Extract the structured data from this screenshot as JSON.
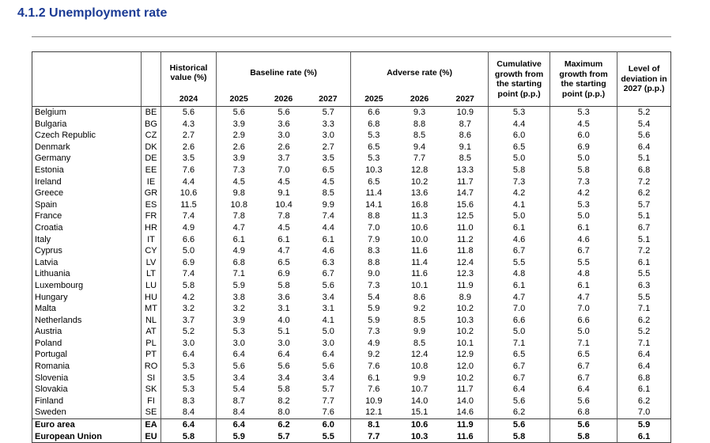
{
  "page": {
    "title": "4.1.2 Unemployment rate"
  },
  "table": {
    "group_headers": {
      "historical": "Historical value (%)",
      "baseline": "Baseline rate (%)",
      "adverse": "Adverse rate (%)",
      "cumulative": "Cumulative growth from the starting point (p.p.)",
      "maximum": "Maximum growth from the starting point (p.p.)",
      "level": "Level of deviation in 2027 (p.p.)"
    },
    "years": {
      "historical": "2024",
      "baseline": [
        "2025",
        "2026",
        "2027"
      ],
      "adverse": [
        "2025",
        "2026",
        "2027"
      ]
    },
    "rows": [
      {
        "name": "Belgium",
        "code": "BE",
        "values": [
          "5.6",
          "5.6",
          "5.6",
          "5.7",
          "6.6",
          "9.3",
          "10.9",
          "5.3",
          "5.3",
          "5.2"
        ]
      },
      {
        "name": "Bulgaria",
        "code": "BG",
        "values": [
          "4.3",
          "3.9",
          "3.6",
          "3.3",
          "6.8",
          "8.8",
          "8.7",
          "4.4",
          "4.5",
          "5.4"
        ]
      },
      {
        "name": "Czech Republic",
        "code": "CZ",
        "values": [
          "2.7",
          "2.9",
          "3.0",
          "3.0",
          "5.3",
          "8.5",
          "8.6",
          "6.0",
          "6.0",
          "5.6"
        ]
      },
      {
        "name": "Denmark",
        "code": "DK",
        "values": [
          "2.6",
          "2.6",
          "2.6",
          "2.7",
          "6.5",
          "9.4",
          "9.1",
          "6.5",
          "6.9",
          "6.4"
        ]
      },
      {
        "name": "Germany",
        "code": "DE",
        "values": [
          "3.5",
          "3.9",
          "3.7",
          "3.5",
          "5.3",
          "7.7",
          "8.5",
          "5.0",
          "5.0",
          "5.1"
        ]
      },
      {
        "name": "Estonia",
        "code": "EE",
        "values": [
          "7.6",
          "7.3",
          "7.0",
          "6.5",
          "10.3",
          "12.8",
          "13.3",
          "5.8",
          "5.8",
          "6.8"
        ]
      },
      {
        "name": "Ireland",
        "code": "IE",
        "values": [
          "4.4",
          "4.5",
          "4.5",
          "4.5",
          "6.5",
          "10.2",
          "11.7",
          "7.3",
          "7.3",
          "7.2"
        ]
      },
      {
        "name": "Greece",
        "code": "GR",
        "values": [
          "10.6",
          "9.8",
          "9.1",
          "8.5",
          "11.4",
          "13.6",
          "14.7",
          "4.2",
          "4.2",
          "6.2"
        ]
      },
      {
        "name": "Spain",
        "code": "ES",
        "values": [
          "11.5",
          "10.8",
          "10.4",
          "9.9",
          "14.1",
          "16.8",
          "15.6",
          "4.1",
          "5.3",
          "5.7"
        ]
      },
      {
        "name": "France",
        "code": "FR",
        "values": [
          "7.4",
          "7.8",
          "7.8",
          "7.4",
          "8.8",
          "11.3",
          "12.5",
          "5.0",
          "5.0",
          "5.1"
        ]
      },
      {
        "name": "Croatia",
        "code": "HR",
        "values": [
          "4.9",
          "4.7",
          "4.5",
          "4.4",
          "7.0",
          "10.6",
          "11.0",
          "6.1",
          "6.1",
          "6.7"
        ]
      },
      {
        "name": "Italy",
        "code": "IT",
        "values": [
          "6.6",
          "6.1",
          "6.1",
          "6.1",
          "7.9",
          "10.0",
          "11.2",
          "4.6",
          "4.6",
          "5.1"
        ]
      },
      {
        "name": "Cyprus",
        "code": "CY",
        "values": [
          "5.0",
          "4.9",
          "4.7",
          "4.6",
          "8.3",
          "11.6",
          "11.8",
          "6.7",
          "6.7",
          "7.2"
        ]
      },
      {
        "name": "Latvia",
        "code": "LV",
        "values": [
          "6.9",
          "6.8",
          "6.5",
          "6.3",
          "8.8",
          "11.4",
          "12.4",
          "5.5",
          "5.5",
          "6.1"
        ]
      },
      {
        "name": "Lithuania",
        "code": "LT",
        "values": [
          "7.4",
          "7.1",
          "6.9",
          "6.7",
          "9.0",
          "11.6",
          "12.3",
          "4.8",
          "4.8",
          "5.5"
        ]
      },
      {
        "name": "Luxembourg",
        "code": "LU",
        "values": [
          "5.8",
          "5.9",
          "5.8",
          "5.6",
          "7.3",
          "10.1",
          "11.9",
          "6.1",
          "6.1",
          "6.3"
        ]
      },
      {
        "name": "Hungary",
        "code": "HU",
        "values": [
          "4.2",
          "3.8",
          "3.6",
          "3.4",
          "5.4",
          "8.6",
          "8.9",
          "4.7",
          "4.7",
          "5.5"
        ]
      },
      {
        "name": "Malta",
        "code": "MT",
        "values": [
          "3.2",
          "3.2",
          "3.1",
          "3.1",
          "5.9",
          "9.2",
          "10.2",
          "7.0",
          "7.0",
          "7.1"
        ]
      },
      {
        "name": "Netherlands",
        "code": "NL",
        "values": [
          "3.7",
          "3.9",
          "4.0",
          "4.1",
          "5.9",
          "8.5",
          "10.3",
          "6.6",
          "6.6",
          "6.2"
        ]
      },
      {
        "name": "Austria",
        "code": "AT",
        "values": [
          "5.2",
          "5.3",
          "5.1",
          "5.0",
          "7.3",
          "9.9",
          "10.2",
          "5.0",
          "5.0",
          "5.2"
        ]
      },
      {
        "name": "Poland",
        "code": "PL",
        "values": [
          "3.0",
          "3.0",
          "3.0",
          "3.0",
          "4.9",
          "8.5",
          "10.1",
          "7.1",
          "7.1",
          "7.1"
        ]
      },
      {
        "name": "Portugal",
        "code": "PT",
        "values": [
          "6.4",
          "6.4",
          "6.4",
          "6.4",
          "9.2",
          "12.4",
          "12.9",
          "6.5",
          "6.5",
          "6.4"
        ]
      },
      {
        "name": "Romania",
        "code": "RO",
        "values": [
          "5.3",
          "5.6",
          "5.6",
          "5.6",
          "7.6",
          "10.8",
          "12.0",
          "6.7",
          "6.7",
          "6.4"
        ]
      },
      {
        "name": "Slovenia",
        "code": "SI",
        "values": [
          "3.5",
          "3.4",
          "3.4",
          "3.4",
          "6.1",
          "9.9",
          "10.2",
          "6.7",
          "6.7",
          "6.8"
        ]
      },
      {
        "name": "Slovakia",
        "code": "SK",
        "values": [
          "5.3",
          "5.4",
          "5.8",
          "5.7",
          "7.6",
          "10.7",
          "11.7",
          "6.4",
          "6.4",
          "6.1"
        ]
      },
      {
        "name": "Finland",
        "code": "FI",
        "values": [
          "8.3",
          "8.7",
          "8.2",
          "7.7",
          "10.9",
          "14.0",
          "14.0",
          "5.6",
          "5.6",
          "6.2"
        ]
      },
      {
        "name": "Sweden",
        "code": "SE",
        "values": [
          "8.4",
          "8.4",
          "8.0",
          "7.6",
          "12.1",
          "15.1",
          "14.6",
          "6.2",
          "6.8",
          "7.0"
        ]
      },
      {
        "name": "Euro area",
        "code": "EA",
        "bold": true,
        "separator": true,
        "values": [
          "6.4",
          "6.4",
          "6.2",
          "6.0",
          "8.1",
          "10.6",
          "11.9",
          "5.6",
          "5.6",
          "5.9"
        ]
      },
      {
        "name": "European Union",
        "code": "EU",
        "bold": true,
        "values": [
          "5.8",
          "5.9",
          "5.7",
          "5.5",
          "7.7",
          "10.3",
          "11.6",
          "5.8",
          "5.8",
          "6.1"
        ]
      }
    ]
  }
}
